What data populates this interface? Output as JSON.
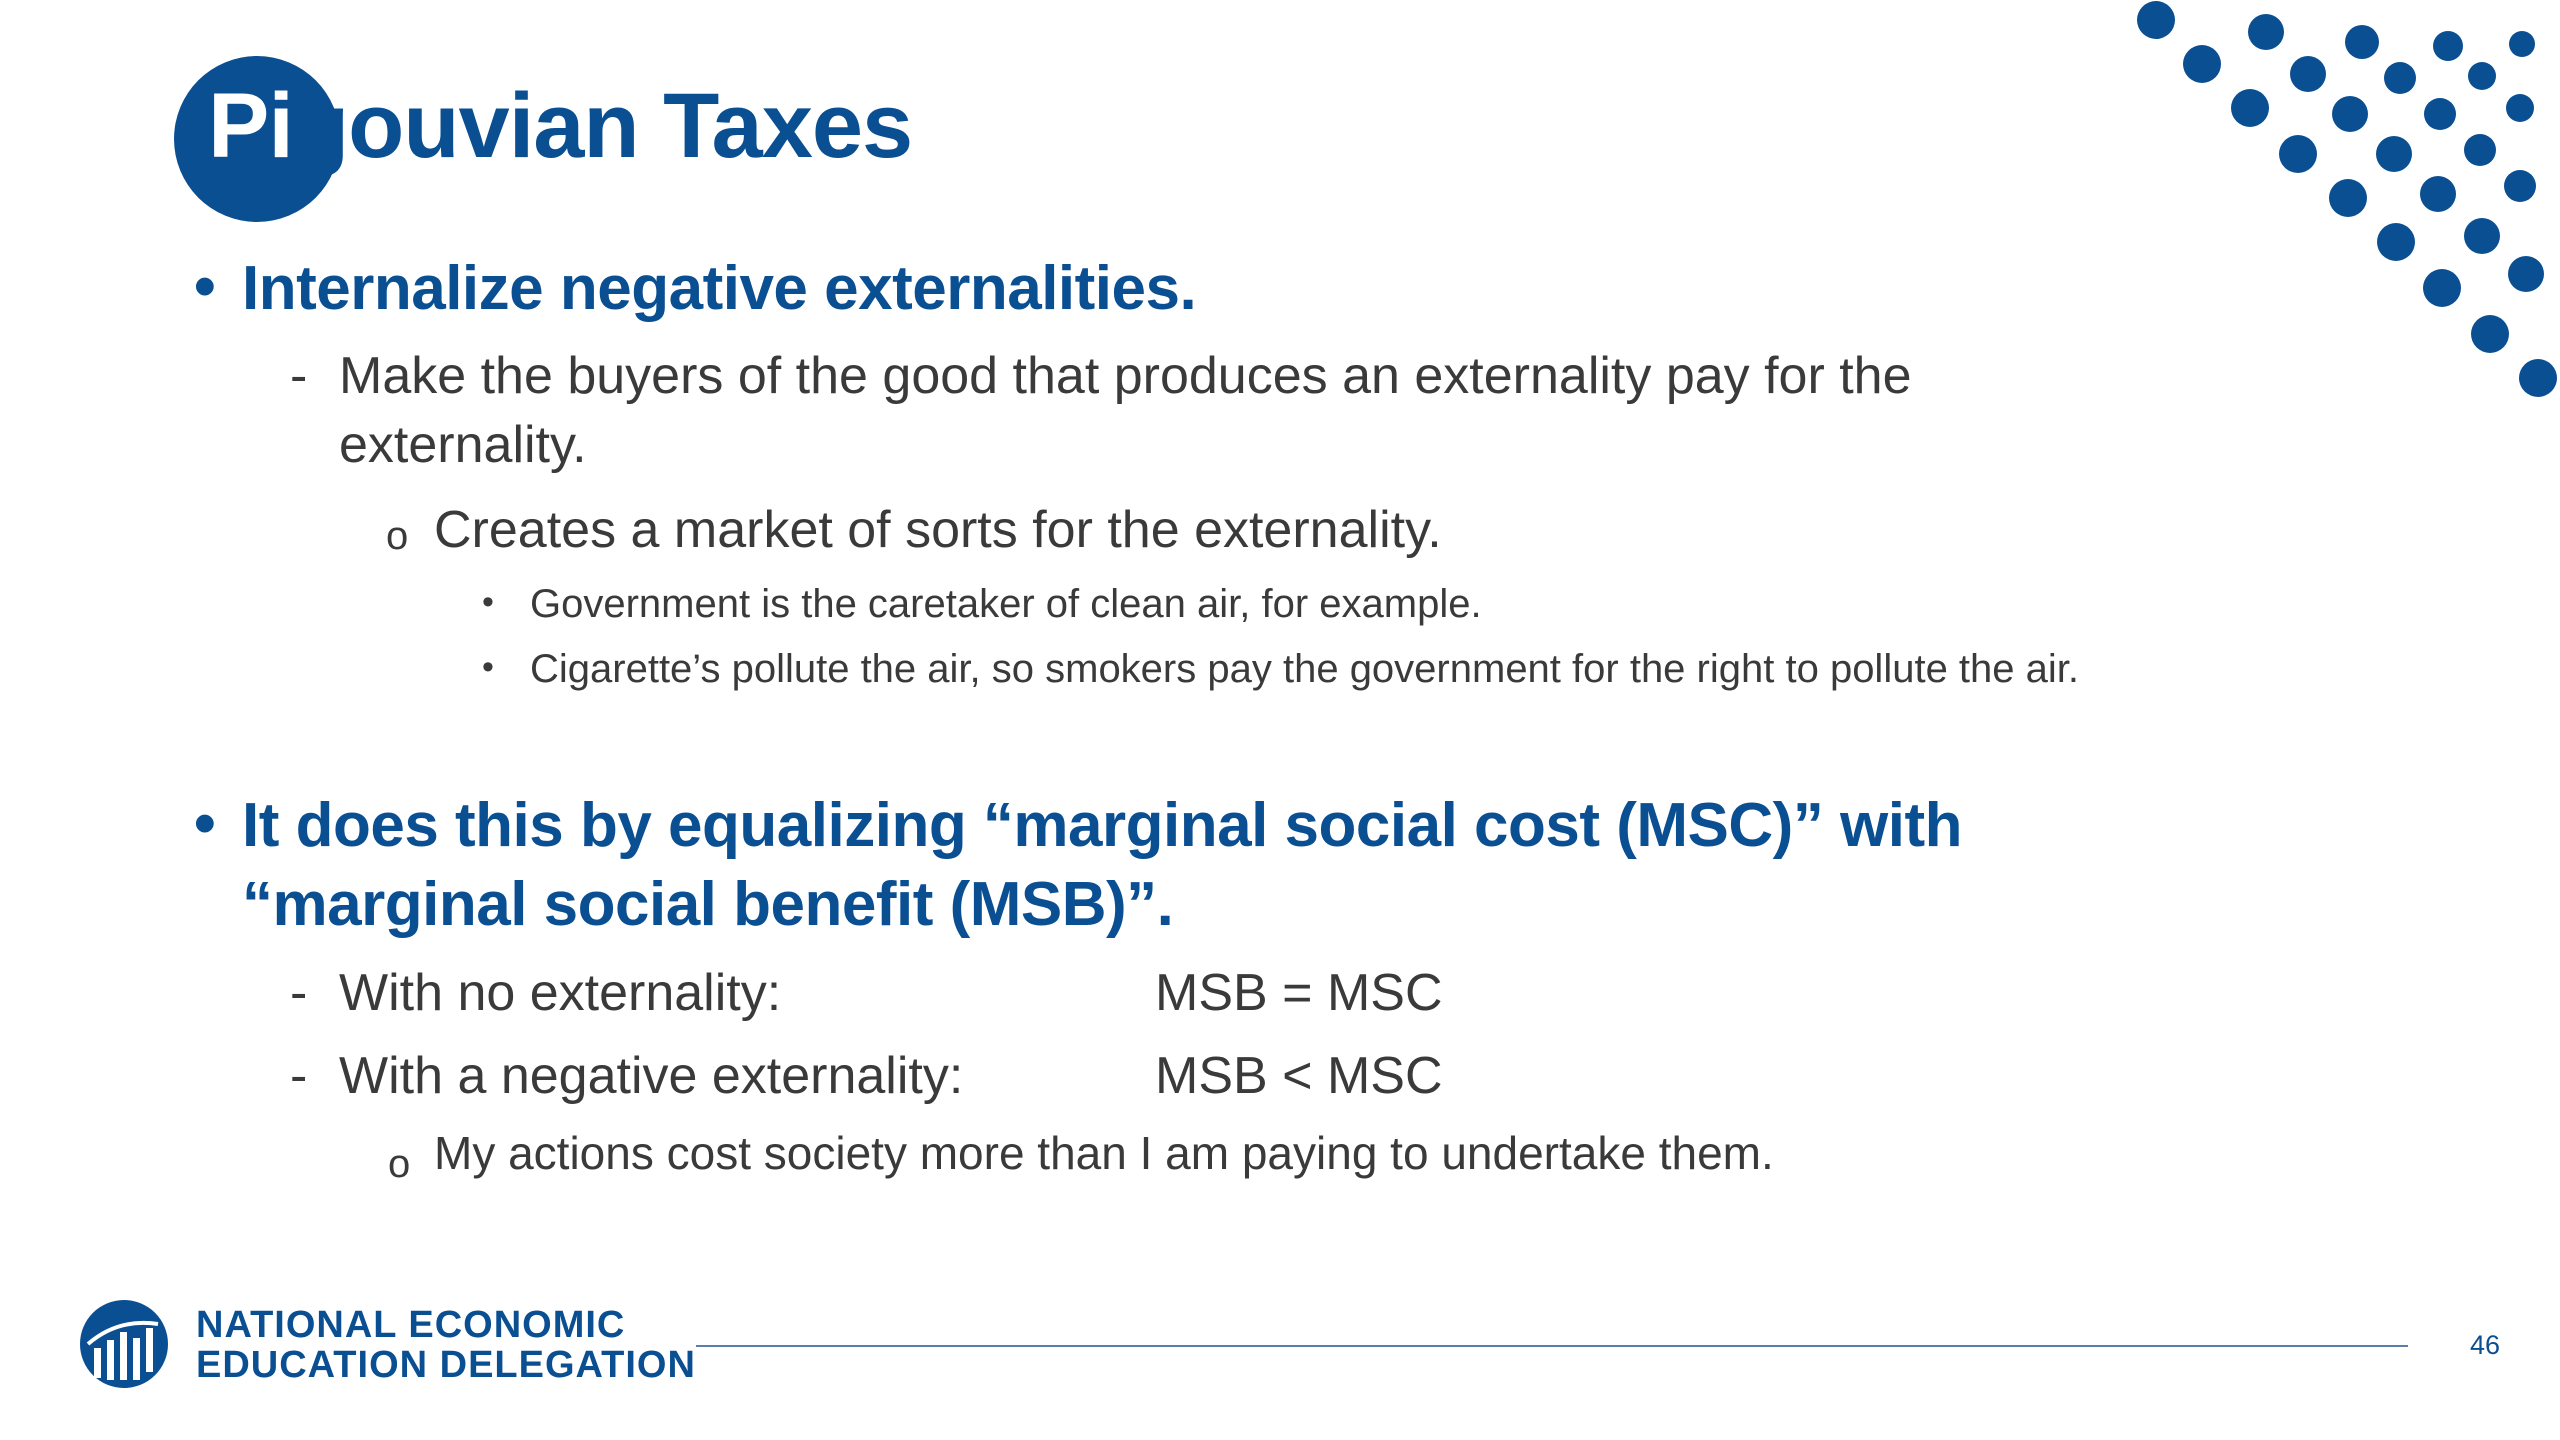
{
  "slide": {
    "title_first": "Pi",
    "title_rest": "gouvian Taxes",
    "bullets": {
      "b1": "Internalize negative externalities.",
      "b1_s1_line1": "Make the buyers of the good that produces an externality pay for the",
      "b1_s1_line2": "externality.",
      "b1_s1_s1": "Creates a market of sorts for the externality.",
      "b1_s1_s1_s1": "Government is the caretaker of clean air, for example.",
      "b1_s1_s1_s2": "Cigarette’s pollute the air, so smokers pay the government for the right to pollute the air.",
      "b2_line1": "It does this by equalizing “marginal social cost (MSC)” with",
      "b2_line2": "“marginal social benefit (MSB)”.",
      "b2_s1_label": "With no externality:",
      "b2_s1_value": "MSB = MSC",
      "b2_s2_label": "With a negative externality:",
      "b2_s2_value": "MSB < MSC",
      "b2_s2_s1": "My actions cost society more than I am paying to undertake them."
    },
    "markers": {
      "level1": "•",
      "level2": "-",
      "level3": "o",
      "level4": "•"
    }
  },
  "footer": {
    "org_line1": "NATIONAL ECONOMIC",
    "org_line2": "EDUCATION DELEGATION",
    "page_number": "46"
  },
  "colors": {
    "brand_blue": "#0b4f93",
    "body_text": "#3a3a3a",
    "rule": "#5a7fab"
  }
}
